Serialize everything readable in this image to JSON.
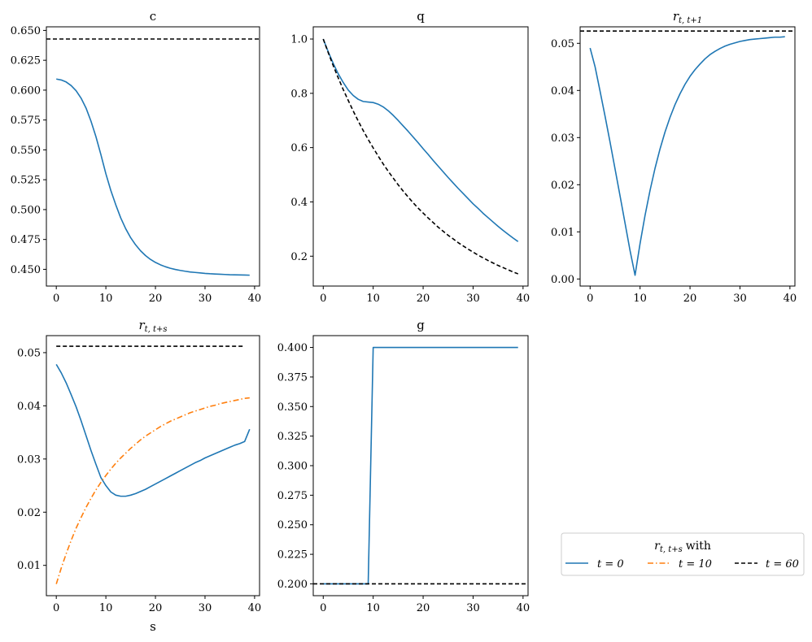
{
  "chart_data": [
    {
      "id": "c",
      "type": "line",
      "title": "c",
      "xlabel": "",
      "xlim": [
        -2,
        41
      ],
      "ylim": [
        0.436,
        0.653
      ],
      "xticks": [
        0,
        10,
        20,
        30,
        40
      ],
      "yticks": [
        0.45,
        0.475,
        0.5,
        0.525,
        0.55,
        0.575,
        0.6,
        0.625,
        0.65
      ],
      "ytick_decimals": 3,
      "series": [
        {
          "role": "t0",
          "color": "#1f77b4",
          "dash": "solid",
          "x": [
            0,
            1,
            2,
            3,
            4,
            5,
            6,
            7,
            8,
            9,
            10,
            11,
            12,
            13,
            14,
            15,
            16,
            17,
            18,
            19,
            20,
            21,
            22,
            23,
            24,
            25,
            26,
            27,
            28,
            29,
            30,
            31,
            32,
            33,
            34,
            35,
            36,
            37,
            38,
            39
          ],
          "y": [
            0.6093,
            0.6085,
            0.6068,
            0.6038,
            0.5995,
            0.5933,
            0.585,
            0.574,
            0.561,
            0.546,
            0.53,
            0.516,
            0.504,
            0.493,
            0.484,
            0.4765,
            0.4705,
            0.4655,
            0.4615,
            0.4583,
            0.4558,
            0.4538,
            0.4522,
            0.4509,
            0.4499,
            0.4491,
            0.4484,
            0.4478,
            0.4474,
            0.447,
            0.4466,
            0.4463,
            0.4461,
            0.4459,
            0.4457,
            0.4455,
            0.4454,
            0.4453,
            0.4452,
            0.4451
          ]
        },
        {
          "role": "t60",
          "color": "#000000",
          "dash": "dashed",
          "x": [
            -2,
            41
          ],
          "y": [
            0.6428,
            0.6428
          ]
        }
      ]
    },
    {
      "id": "q",
      "type": "line",
      "title": "q",
      "xlabel": "",
      "xlim": [
        -2,
        41
      ],
      "ylim": [
        0.09,
        1.045
      ],
      "xticks": [
        0,
        10,
        20,
        30,
        40
      ],
      "yticks": [
        0.2,
        0.4,
        0.6,
        0.8,
        1.0
      ],
      "ytick_decimals": 1,
      "series": [
        {
          "role": "t0",
          "color": "#1f77b4",
          "dash": "solid",
          "x": [
            0,
            1,
            2,
            3,
            4,
            5,
            6,
            7,
            8,
            9,
            10,
            11,
            12,
            13,
            14,
            15,
            16,
            17,
            18,
            19,
            20,
            21,
            22,
            23,
            24,
            25,
            26,
            27,
            28,
            29,
            30,
            31,
            32,
            33,
            34,
            35,
            36,
            37,
            38,
            39
          ],
          "y": [
            1.0,
            0.953,
            0.91,
            0.872,
            0.84,
            0.812,
            0.792,
            0.778,
            0.77,
            0.768,
            0.766,
            0.76,
            0.75,
            0.736,
            0.719,
            0.7,
            0.68,
            0.66,
            0.639,
            0.618,
            0.596,
            0.575,
            0.553,
            0.532,
            0.511,
            0.49,
            0.47,
            0.45,
            0.431,
            0.412,
            0.393,
            0.376,
            0.358,
            0.342,
            0.326,
            0.31,
            0.295,
            0.281,
            0.267,
            0.254
          ]
        },
        {
          "role": "t60",
          "color": "#000000",
          "dash": "dashed",
          "x": [
            0,
            1,
            2,
            3,
            4,
            5,
            6,
            7,
            8,
            9,
            10,
            11,
            12,
            13,
            14,
            15,
            16,
            17,
            18,
            19,
            20,
            21,
            22,
            23,
            24,
            25,
            26,
            27,
            28,
            29,
            30,
            31,
            32,
            33,
            34,
            35,
            36,
            37,
            38,
            39
          ],
          "y": [
            1.0,
            0.95,
            0.902,
            0.857,
            0.814,
            0.774,
            0.735,
            0.698,
            0.663,
            0.63,
            0.599,
            0.569,
            0.54,
            0.513,
            0.488,
            0.463,
            0.44,
            0.418,
            0.397,
            0.377,
            0.359,
            0.341,
            0.324,
            0.307,
            0.292,
            0.277,
            0.264,
            0.25,
            0.238,
            0.226,
            0.215,
            0.204,
            0.194,
            0.184,
            0.175,
            0.166,
            0.158,
            0.15,
            0.142,
            0.135
          ]
        }
      ]
    },
    {
      "id": "r1",
      "type": "line",
      "title": "r_{t,t+1}",
      "title_main": "r",
      "title_sub": "t, t+1",
      "xlabel": "",
      "xlim": [
        -2,
        41
      ],
      "ylim": [
        -0.0015,
        0.0535
      ],
      "xticks": [
        0,
        10,
        20,
        30,
        40
      ],
      "yticks": [
        0.0,
        0.01,
        0.02,
        0.03,
        0.04,
        0.05
      ],
      "ytick_decimals": 2,
      "series": [
        {
          "role": "t0",
          "color": "#1f77b4",
          "dash": "solid",
          "x": [
            0,
            1,
            2,
            3,
            4,
            5,
            6,
            7,
            8,
            9,
            10,
            11,
            12,
            13,
            14,
            15,
            16,
            17,
            18,
            19,
            20,
            21,
            22,
            23,
            24,
            25,
            26,
            27,
            28,
            29,
            30,
            31,
            32,
            33,
            34,
            35,
            36,
            37,
            38,
            39
          ],
          "y": [
            0.049,
            0.045,
            0.0398,
            0.0345,
            0.029,
            0.0233,
            0.0176,
            0.0118,
            0.006,
            0.0008,
            0.0075,
            0.0135,
            0.0188,
            0.0235,
            0.0276,
            0.0312,
            0.0343,
            0.037,
            0.0393,
            0.0413,
            0.043,
            0.0444,
            0.0456,
            0.0467,
            0.0476,
            0.0483,
            0.0489,
            0.0494,
            0.0498,
            0.0501,
            0.0504,
            0.0506,
            0.0508,
            0.0509,
            0.051,
            0.0511,
            0.0512,
            0.0513,
            0.0513,
            0.0514
          ]
        },
        {
          "role": "t60",
          "color": "#000000",
          "dash": "dashed",
          "x": [
            -2,
            41
          ],
          "y": [
            0.0526,
            0.0526
          ]
        }
      ]
    },
    {
      "id": "rs",
      "type": "line",
      "title": "r_{t,t+s}",
      "title_main": "r",
      "title_sub": "t, t+s",
      "xlabel": "s",
      "xlim": [
        -2,
        41
      ],
      "ylim": [
        0.0043,
        0.0532
      ],
      "xticks": [
        0,
        10,
        20,
        30,
        40
      ],
      "yticks": [
        0.01,
        0.02,
        0.03,
        0.04,
        0.05
      ],
      "ytick_decimals": 2,
      "series": [
        {
          "role": "t0",
          "color": "#1f77b4",
          "dash": "solid",
          "x": [
            0,
            1,
            2,
            3,
            4,
            5,
            6,
            7,
            8,
            9,
            10,
            11,
            12,
            13,
            14,
            15,
            16,
            17,
            18,
            19,
            20,
            21,
            22,
            23,
            24,
            25,
            26,
            27,
            28,
            29,
            30,
            31,
            32,
            33,
            34,
            35,
            36,
            37,
            38,
            39
          ],
          "y": [
            0.0478,
            0.0462,
            0.0443,
            0.0421,
            0.0398,
            0.0372,
            0.0344,
            0.0316,
            0.029,
            0.0265,
            0.025,
            0.0238,
            0.0232,
            0.023,
            0.023,
            0.0232,
            0.0235,
            0.0239,
            0.0243,
            0.0248,
            0.0253,
            0.0258,
            0.0263,
            0.0268,
            0.0273,
            0.0278,
            0.0283,
            0.0288,
            0.0293,
            0.0297,
            0.0302,
            0.0306,
            0.031,
            0.0314,
            0.0318,
            0.0322,
            0.0326,
            0.0329,
            0.0333,
            0.0356
          ]
        },
        {
          "role": "t10",
          "color": "#ff7f0e",
          "dash": "dashdot",
          "x": [
            0,
            1,
            2,
            3,
            4,
            5,
            6,
            7,
            8,
            9,
            10,
            11,
            12,
            13,
            14,
            15,
            16,
            17,
            18,
            19,
            20,
            21,
            22,
            23,
            24,
            25,
            26,
            27,
            28,
            29,
            30,
            31,
            32,
            33,
            34,
            35,
            36,
            37,
            38,
            39
          ],
          "y": [
            0.0065,
            0.0095,
            0.0122,
            0.0147,
            0.017,
            0.019,
            0.0209,
            0.0226,
            0.0242,
            0.0256,
            0.0269,
            0.0281,
            0.0292,
            0.0302,
            0.0311,
            0.032,
            0.0328,
            0.0336,
            0.0343,
            0.0349,
            0.0355,
            0.0361,
            0.0366,
            0.0371,
            0.0375,
            0.0379,
            0.0383,
            0.0387,
            0.039,
            0.0393,
            0.0396,
            0.0399,
            0.0401,
            0.0404,
            0.0406,
            0.0408,
            0.041,
            0.0412,
            0.0414,
            0.0415
          ]
        },
        {
          "role": "t60",
          "color": "#000000",
          "dash": "dashed",
          "x": [
            0,
            38
          ],
          "y": [
            0.0512,
            0.0512
          ]
        }
      ]
    },
    {
      "id": "g",
      "type": "line",
      "title": "g",
      "xlabel": "",
      "xlim": [
        -2,
        41
      ],
      "ylim": [
        0.19,
        0.41
      ],
      "xticks": [
        0,
        10,
        20,
        30,
        40
      ],
      "yticks": [
        0.2,
        0.225,
        0.25,
        0.275,
        0.3,
        0.325,
        0.35,
        0.375,
        0.4
      ],
      "ytick_decimals": 3,
      "series": [
        {
          "role": "t0",
          "color": "#1f77b4",
          "dash": "solid",
          "x": [
            0,
            9,
            10,
            39
          ],
          "y": [
            0.2,
            0.2,
            0.4,
            0.4
          ]
        },
        {
          "role": "t60",
          "color": "#000000",
          "dash": "dashed",
          "x": [
            -2,
            41
          ],
          "y": [
            0.2,
            0.2
          ]
        }
      ]
    }
  ],
  "legend": {
    "title_main": "r",
    "title_sub": "t, t+s",
    "title_suffix": "with",
    "entries": [
      {
        "role": "t0",
        "label": "t = 0",
        "color": "#1f77b4",
        "dash": "solid"
      },
      {
        "role": "t10",
        "label": "t = 10",
        "color": "#ff7f0e",
        "dash": "dashdot"
      },
      {
        "role": "t60",
        "label": "t = 60",
        "color": "#000000",
        "dash": "dashed"
      }
    ]
  }
}
